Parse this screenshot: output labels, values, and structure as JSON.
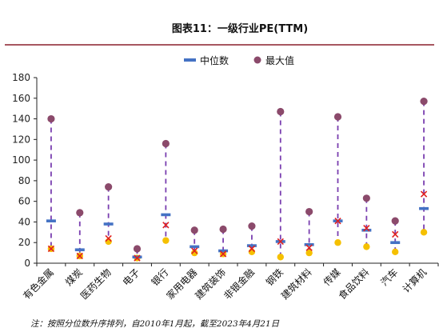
{
  "chart_data": {
    "type": "range",
    "title": "图表11：一级行业PE(TTM)",
    "categories": [
      "有色金属",
      "煤炭",
      "医药生物",
      "电子",
      "银行",
      "家用电器",
      "建筑装饰",
      "非银金融",
      "钢铁",
      "建筑材料",
      "传媒",
      "食品饮料",
      "汽车",
      "计算机"
    ],
    "ylim": [
      0,
      180
    ],
    "yticks": [
      0,
      20,
      40,
      60,
      80,
      100,
      120,
      140,
      160,
      180
    ],
    "grid": false,
    "legend": "top",
    "series": [
      {
        "name": "中位数",
        "marker": "dash",
        "color": "#4472c4",
        "values": [
          41,
          13,
          38,
          6,
          47,
          16,
          12,
          17,
          21,
          18,
          41,
          32,
          20,
          53
        ]
      },
      {
        "name": "最大值",
        "marker": "circle",
        "color": "#8b4a6b",
        "values": [
          140,
          49,
          74,
          14,
          116,
          32,
          33,
          36,
          147,
          50,
          142,
          63,
          41,
          157
        ]
      },
      {
        "marker": "circle",
        "color": "#f5c000",
        "values": [
          14,
          7,
          21,
          5,
          22,
          10,
          9,
          11,
          6,
          10,
          20,
          16,
          11,
          30
        ]
      },
      {
        "marker": "cross",
        "color": "#e02020",
        "values": [
          14,
          7,
          24,
          5,
          37,
          12,
          9,
          14,
          21,
          15,
          41,
          34,
          28,
          67
        ]
      }
    ],
    "note": "注：按照分位数升序排列，自2010年1月起，截至2023年4月21日"
  }
}
